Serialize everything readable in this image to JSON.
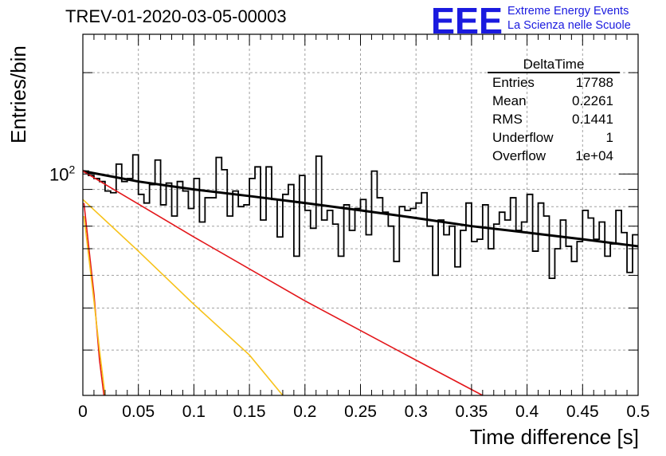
{
  "header": {
    "title": "TREV-01-2020-03-05-00003",
    "logo_letters": "EEE",
    "logo_line1": "Extreme Energy Events",
    "logo_line2": "La Scienza nelle Scuole"
  },
  "stats_box": {
    "title": "DeltaTime",
    "rows": [
      {
        "label": "Entries",
        "value": "17788"
      },
      {
        "label": "Mean",
        "value": "0.2261"
      },
      {
        "label": "RMS",
        "value": "0.1441"
      },
      {
        "label": "Underflow",
        "value": "1"
      },
      {
        "label": "Overflow",
        "value": "1e+04"
      }
    ]
  },
  "colors": {
    "histogram": "#000000",
    "fit_total": "#000000",
    "component_red": "#e3161a",
    "component_yellow": "#f7c21a",
    "grid": "#a0a0a0"
  },
  "chart_data": {
    "type": "line",
    "title": "TREV-01-2020-03-05-00003",
    "xlabel": "Time difference [s]",
    "ylabel": "Entries/bin",
    "xlim": [
      0,
      0.5
    ],
    "ylim": [
      22,
      260
    ],
    "yscale": "log",
    "grid": true,
    "x_ticks": [
      "0",
      "0.05",
      "0.1",
      "0.15",
      "0.2",
      "0.25",
      "0.3",
      "0.35",
      "0.4",
      "0.45",
      "0.5"
    ],
    "y_tick_label": "10^2",
    "histogram": {
      "bin_width": 0.005,
      "x_start": 0,
      "values": [
        102,
        99,
        97,
        95,
        89,
        88,
        107,
        95,
        97,
        114,
        87,
        82,
        93,
        110,
        81,
        94,
        75,
        95,
        89,
        79,
        97,
        72,
        85,
        85,
        112,
        103,
        75,
        89,
        80,
        81,
        97,
        105,
        73,
        105,
        84,
        65,
        87,
        93,
        57,
        99,
        78,
        69,
        113,
        73,
        78,
        71,
        57,
        81,
        68,
        79,
        84,
        66,
        102,
        85,
        77,
        70,
        55,
        80,
        78,
        79,
        82,
        88,
        70,
        50,
        73,
        66,
        70,
        53,
        68,
        82,
        63,
        64,
        81,
        60,
        71,
        77,
        73,
        85,
        68,
        72,
        87,
        59,
        82,
        75,
        49,
        60,
        73,
        61,
        55,
        63,
        78,
        74,
        64,
        72,
        57,
        62,
        78,
        67,
        51,
        66
      ]
    },
    "series": [
      {
        "name": "",
        "color": "black",
        "kind": "total_fit",
        "x": [
          0,
          0.05,
          0.1,
          0.15,
          0.2,
          0.25,
          0.3,
          0.35,
          0.4,
          0.45,
          0.5
        ],
        "y": [
          102,
          95,
          90,
          86,
          82,
          78,
          74,
          70,
          67,
          64,
          61
        ]
      },
      {
        "name": "",
        "color": "red",
        "kind": "component",
        "x": [
          0,
          0.1,
          0.2,
          0.3,
          0.36
        ],
        "y": [
          102,
          65,
          42,
          28,
          22
        ]
      },
      {
        "name": "",
        "color": "yellow",
        "kind": "component",
        "x": [
          0,
          0.05,
          0.1,
          0.15,
          0.18
        ],
        "y": [
          84,
          59,
          41,
          29,
          22
        ]
      },
      {
        "name": "",
        "color": "red",
        "kind": "component",
        "x": [
          0.001,
          0.005,
          0.01,
          0.015,
          0.019
        ],
        "y": [
          82,
          62,
          44,
          28,
          22
        ]
      },
      {
        "name": "",
        "color": "yellow",
        "kind": "component",
        "x": [
          0.001,
          0.005,
          0.01,
          0.015,
          0.02
        ],
        "y": [
          75,
          58,
          42,
          30,
          22
        ]
      }
    ]
  }
}
